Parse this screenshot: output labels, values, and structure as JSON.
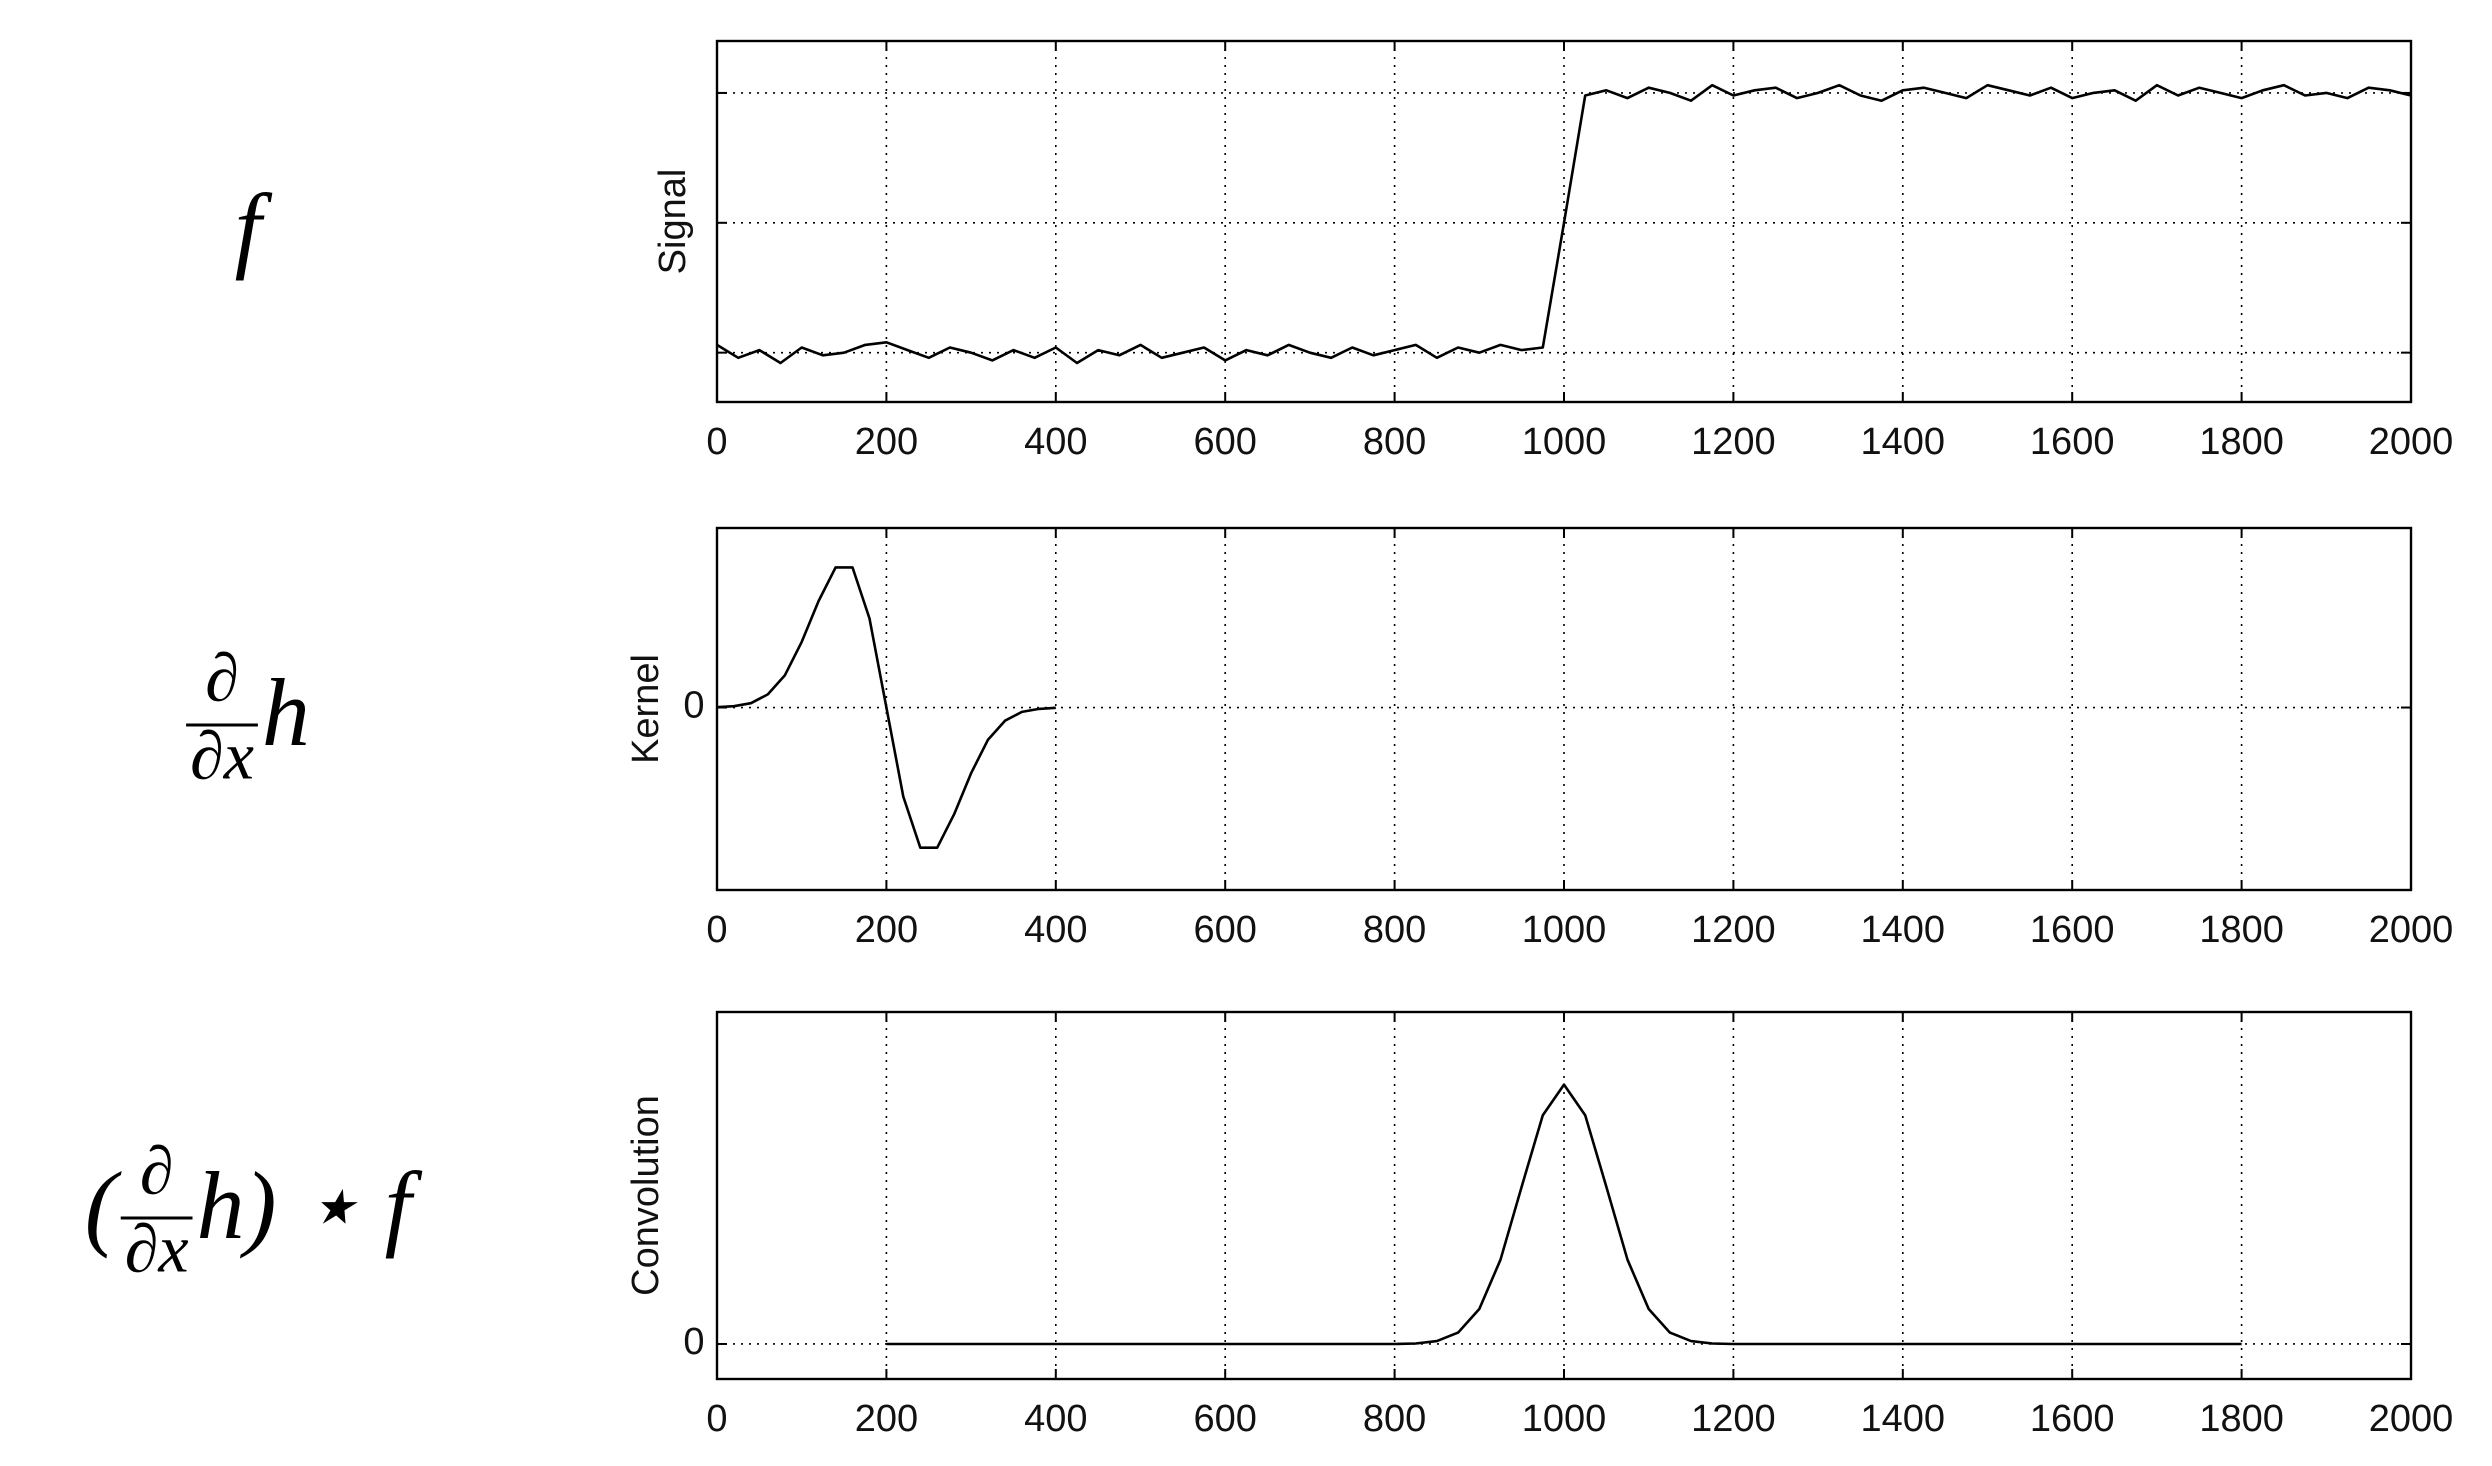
{
  "chart_data": [
    {
      "type": "line",
      "annotation": [
        "f"
      ],
      "ylabel": "Signal",
      "x": [
        0,
        25,
        50,
        75,
        100,
        125,
        150,
        175,
        200,
        225,
        250,
        275,
        300,
        325,
        350,
        375,
        400,
        425,
        450,
        475,
        500,
        525,
        550,
        575,
        600,
        625,
        650,
        675,
        700,
        725,
        750,
        775,
        800,
        825,
        850,
        875,
        900,
        925,
        950,
        975,
        1000,
        1025,
        1050,
        1075,
        1100,
        1125,
        1150,
        1175,
        1200,
        1225,
        1250,
        1275,
        1300,
        1325,
        1350,
        1375,
        1400,
        1425,
        1450,
        1475,
        1500,
        1525,
        1550,
        1575,
        1600,
        1625,
        1650,
        1675,
        1700,
        1725,
        1750,
        1775,
        1800,
        1825,
        1850,
        1875,
        1900,
        1925,
        1950,
        1975,
        2000
      ],
      "values": [
        0.03,
        -0.02,
        0.01,
        -0.04,
        0.02,
        -0.01,
        0.0,
        0.03,
        0.04,
        0.01,
        -0.02,
        0.02,
        0.0,
        -0.03,
        0.01,
        -0.02,
        0.02,
        -0.04,
        0.01,
        -0.01,
        0.03,
        -0.02,
        0.0,
        0.02,
        -0.03,
        0.01,
        -0.01,
        0.03,
        0.0,
        -0.02,
        0.02,
        -0.01,
        0.01,
        0.03,
        -0.02,
        0.02,
        0.0,
        0.03,
        0.01,
        0.02,
        0.5,
        0.99,
        1.01,
        0.98,
        1.02,
        1.0,
        0.97,
        1.03,
        0.99,
        1.01,
        1.02,
        0.98,
        1.0,
        1.03,
        0.99,
        0.97,
        1.01,
        1.02,
        1.0,
        0.98,
        1.03,
        1.01,
        0.99,
        1.02,
        0.98,
        1.0,
        1.01,
        0.97,
        1.03,
        0.99,
        1.02,
        1.0,
        0.98,
        1.01,
        1.03,
        0.99,
        1.0,
        0.98,
        1.02,
        1.01,
        0.99
      ],
      "color": "#000000",
      "xlim": [
        0,
        2000
      ],
      "xticks": [
        0,
        200,
        400,
        600,
        800,
        1000,
        1200,
        1400,
        1600,
        1800,
        2000
      ],
      "ylim": [
        -0.19,
        1.2
      ],
      "ygrid": [
        0,
        0.5,
        1
      ],
      "grid": true
    },
    {
      "type": "line",
      "annotation": [
        {
          "num": "∂",
          "den": "∂x"
        },
        "h"
      ],
      "ylabel": "Kernel",
      "x": [
        0,
        20,
        40,
        60,
        80,
        100,
        120,
        140,
        160,
        180,
        200,
        220,
        240,
        260,
        280,
        300,
        320,
        340,
        360,
        380,
        400
      ],
      "values": [
        0.002,
        0.009,
        0.03,
        0.09,
        0.22,
        0.45,
        0.73,
        0.96,
        0.96,
        0.61,
        0,
        -0.61,
        -0.96,
        -0.96,
        -0.73,
        -0.45,
        -0.22,
        -0.09,
        -0.03,
        -0.009,
        -0.002
      ],
      "color": "#000000",
      "xlim": [
        0,
        2000
      ],
      "xticks": [
        0,
        200,
        400,
        600,
        800,
        1000,
        1200,
        1400,
        1600,
        1800,
        2000
      ],
      "ylim": [
        -1.25,
        1.23
      ],
      "yticks": [
        0
      ],
      "grid": true
    },
    {
      "type": "line",
      "annotation": [
        "(",
        {
          "num": "∂",
          "den": "∂x"
        },
        "h) ⋆ f"
      ],
      "ylabel": "Convolution",
      "x": [
        200,
        225,
        250,
        275,
        300,
        325,
        350,
        375,
        400,
        425,
        450,
        475,
        500,
        525,
        550,
        575,
        600,
        625,
        650,
        675,
        700,
        725,
        750,
        775,
        800,
        825,
        850,
        875,
        900,
        925,
        950,
        975,
        1000,
        1025,
        1050,
        1075,
        1100,
        1125,
        1150,
        1175,
        1200,
        1225,
        1250,
        1275,
        1300,
        1325,
        1350,
        1375,
        1400,
        1425,
        1450,
        1475,
        1500,
        1525,
        1550,
        1575,
        1600,
        1625,
        1650,
        1675,
        1700,
        1725,
        1750,
        1775,
        1800
      ],
      "values": [
        0,
        0,
        0,
        0,
        0,
        0,
        0,
        0,
        0,
        0,
        0,
        0,
        0,
        0,
        0,
        0,
        0,
        0,
        0,
        0,
        0,
        0,
        0,
        0,
        0,
        0.002,
        0.011,
        0.044,
        0.135,
        0.325,
        0.607,
        0.882,
        1,
        0.882,
        0.607,
        0.325,
        0.135,
        0.044,
        0.011,
        0.002,
        0,
        0,
        0,
        0,
        0,
        0,
        0,
        0,
        0,
        0,
        0,
        0,
        0,
        0,
        0,
        0,
        0,
        0,
        0,
        0,
        0,
        0,
        0,
        0,
        0
      ],
      "color": "#000000",
      "xlim": [
        0,
        2000
      ],
      "xticks": [
        0,
        200,
        400,
        600,
        800,
        1000,
        1200,
        1400,
        1600,
        1800,
        2000
      ],
      "ylim": [
        -0.135,
        1.28
      ],
      "yticks": [
        0
      ],
      "grid": true
    }
  ]
}
